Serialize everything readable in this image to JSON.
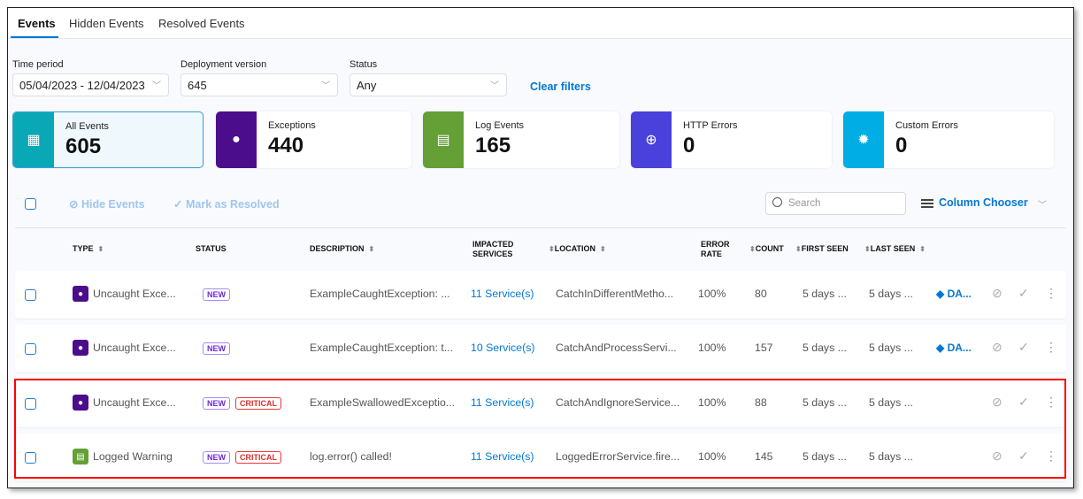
{
  "tabs": [
    "Events",
    "Hidden Events",
    "Resolved Events"
  ],
  "filters": {
    "time_period": {
      "label": "Time period",
      "value": "05/04/2023 - 12/04/2023"
    },
    "deployment_version": {
      "label": "Deployment version",
      "value": "645"
    },
    "status": {
      "label": "Status",
      "value": "Any"
    },
    "clear_label": "Clear filters"
  },
  "cards": [
    {
      "label": "All Events",
      "value": "605",
      "color": "#09a8b6",
      "icon": "grid-icon"
    },
    {
      "label": "Exceptions",
      "value": "440",
      "color": "#4c0d8c",
      "icon": "flame-icon"
    },
    {
      "label": "Log Events",
      "value": "165",
      "color": "#64a036",
      "icon": "document-icon"
    },
    {
      "label": "HTTP Errors",
      "value": "0",
      "color": "#4a40dc",
      "icon": "globe-warning-icon"
    },
    {
      "label": "Custom Errors",
      "value": "0",
      "color": "#00ade4",
      "icon": "flame-gear-icon"
    }
  ],
  "toolbar": {
    "hide_label": "Hide Events",
    "resolve_label": "Mark as Resolved",
    "search_placeholder": "Search",
    "column_chooser": "Column Chooser"
  },
  "columns": {
    "type": "TYPE",
    "status": "STATUS",
    "description": "DESCRIPTION",
    "impacted1": "IMPACTED",
    "impacted2": "SERVICES",
    "location": "LOCATION",
    "error1": "ERROR",
    "error2": "RATE",
    "count": "COUNT",
    "first_seen": "FIRST SEEN",
    "last_seen": "LAST SEEN"
  },
  "rows": [
    {
      "type": "Uncaught Exce...",
      "type_kind": "exception",
      "badges": [
        "NEW"
      ],
      "description": "ExampleCaughtException: ...",
      "services": "11 Service(s)",
      "location": "CatchInDifferentMetho...",
      "error_rate": "100%",
      "count": "80",
      "first_seen": "5 days ...",
      "last_seen": "5 days ...",
      "jira": "DA..."
    },
    {
      "type": "Uncaught Exce...",
      "type_kind": "exception",
      "badges": [
        "NEW"
      ],
      "description": "ExampleCaughtException: t...",
      "services": "10 Service(s)",
      "location": "CatchAndProcessServi...",
      "error_rate": "100%",
      "count": "157",
      "first_seen": "5 days ...",
      "last_seen": "5 days ...",
      "jira": "DA..."
    },
    {
      "type": "Uncaught Exce...",
      "type_kind": "exception",
      "badges": [
        "NEW",
        "CRITICAL"
      ],
      "description": "ExampleSwallowedExceptio...",
      "services": "11 Service(s)",
      "location": "CatchAndIgnoreService...",
      "error_rate": "100%",
      "count": "88",
      "first_seen": "5 days ...",
      "last_seen": "5 days ...",
      "jira": ""
    },
    {
      "type": "Logged Warning",
      "type_kind": "log",
      "badges": [
        "NEW",
        "CRITICAL"
      ],
      "description": "log.error() called!",
      "services": "11 Service(s)",
      "location": "LoggedErrorService.fire...",
      "error_rate": "100%",
      "count": "145",
      "first_seen": "5 days ...",
      "last_seen": "5 days ...",
      "jira": ""
    }
  ]
}
